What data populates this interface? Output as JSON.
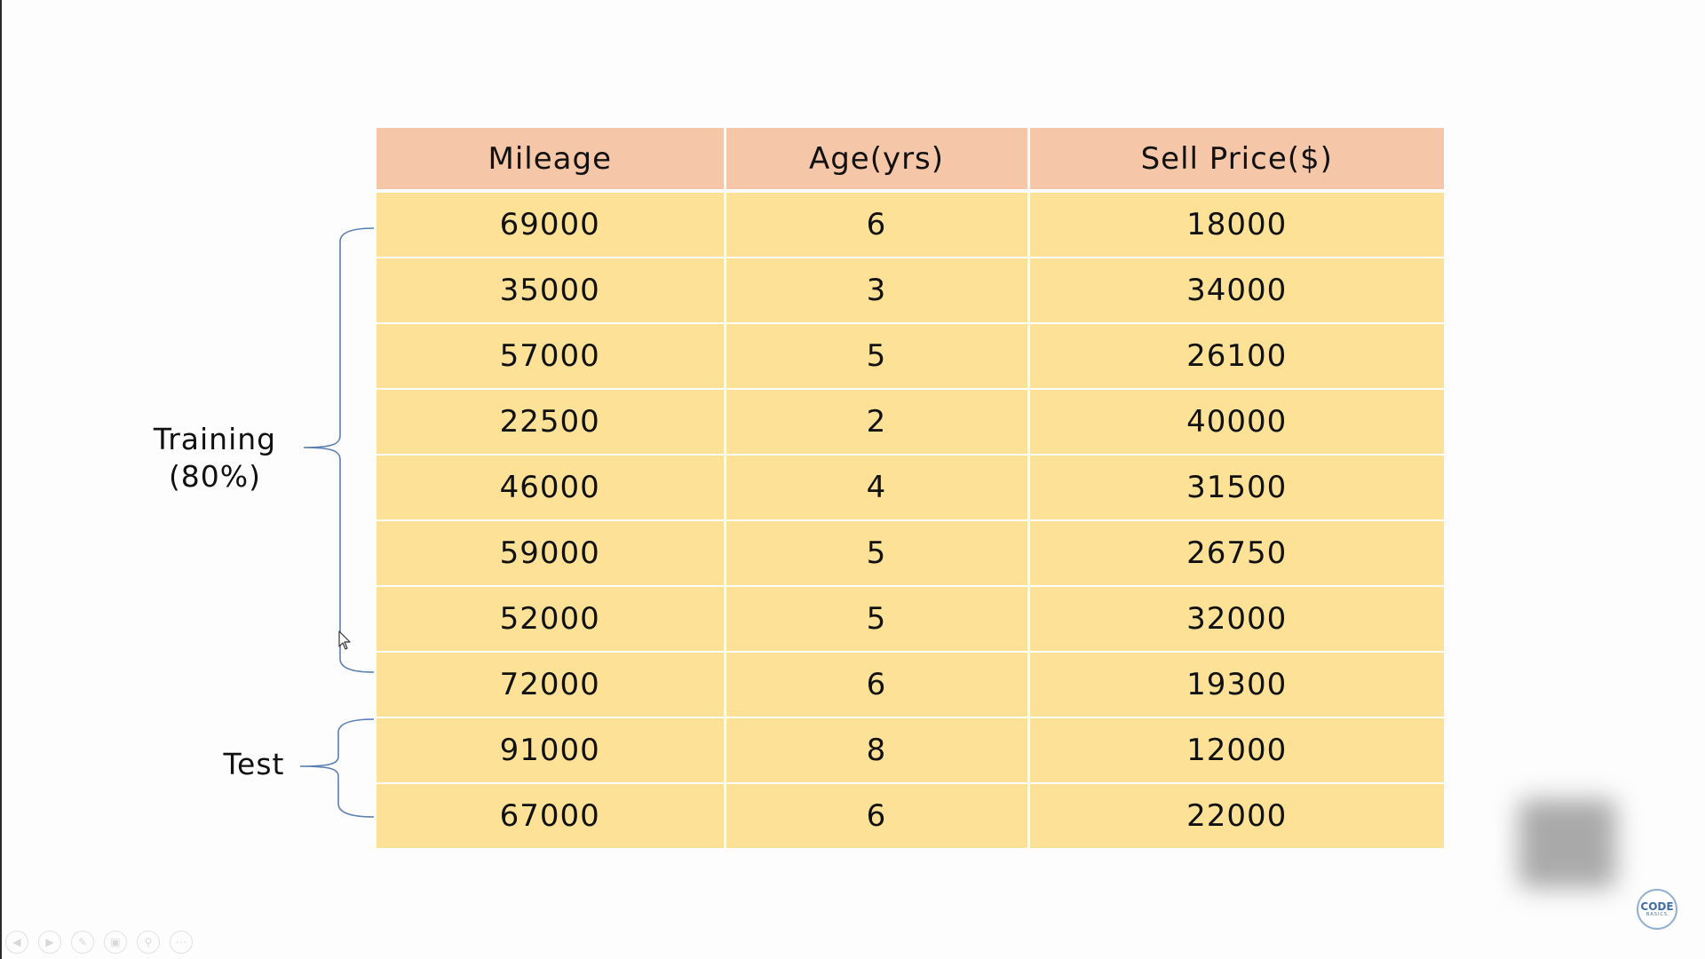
{
  "table": {
    "headers": [
      "Mileage",
      "Age(yrs)",
      "Sell Price($)"
    ],
    "rows": [
      [
        "69000",
        "6",
        "18000"
      ],
      [
        "35000",
        "3",
        "34000"
      ],
      [
        "57000",
        "5",
        "26100"
      ],
      [
        "22500",
        "2",
        "40000"
      ],
      [
        "46000",
        "4",
        "31500"
      ],
      [
        "59000",
        "5",
        "26750"
      ],
      [
        "52000",
        "5",
        "32000"
      ],
      [
        "72000",
        "6",
        "19300"
      ],
      [
        "91000",
        "8",
        "12000"
      ],
      [
        "67000",
        "6",
        "22000"
      ]
    ]
  },
  "labels": {
    "training_line1": "Training",
    "training_line2": "(80%)",
    "test": "Test"
  },
  "logo": {
    "line1": "CODE",
    "line2": "BASICS"
  },
  "colors": {
    "header_bg": "#f5c6a8",
    "cell_bg": "#fce196",
    "brace": "#5a7fb5"
  },
  "icons": {
    "bracket": "curly-brace-icon",
    "cursor": "mouse-pointer-icon",
    "controls": [
      "prev-icon",
      "next-icon",
      "pen-icon",
      "slides-icon",
      "zoom-icon",
      "more-icon"
    ]
  }
}
